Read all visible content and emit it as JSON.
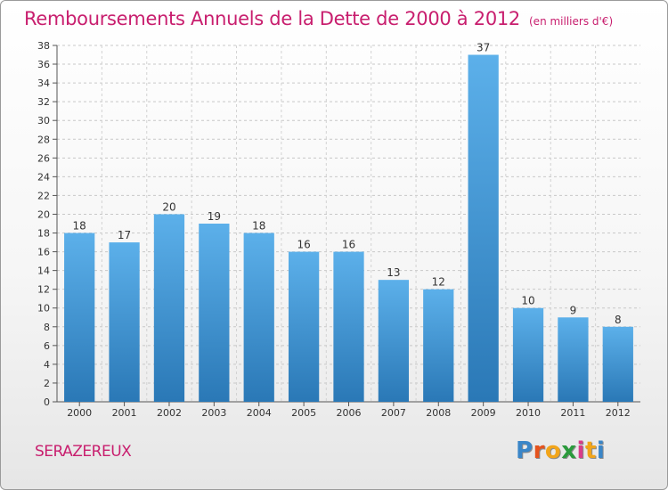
{
  "chart_data": {
    "type": "bar",
    "title": "Remboursements Annuels de la Dette de 2000 à 2012",
    "subtitle": "(en milliers d'€)",
    "categories": [
      "2000",
      "2001",
      "2002",
      "2003",
      "2004",
      "2005",
      "2006",
      "2007",
      "2008",
      "2009",
      "2010",
      "2011",
      "2012"
    ],
    "values": [
      18,
      17,
      20,
      19,
      18,
      16,
      16,
      13,
      12,
      37,
      10,
      9,
      8
    ],
    "ylim": [
      0,
      38
    ],
    "yticks": [
      0,
      2,
      4,
      6,
      8,
      10,
      12,
      14,
      16,
      18,
      20,
      22,
      24,
      26,
      28,
      30,
      32,
      34,
      36,
      38
    ],
    "grid": true,
    "bar_color": "#5aa9e6",
    "bar_color_dark": "#2a7ab8"
  },
  "footer": {
    "location": "SERAZEREUX",
    "logo_letters": [
      "P",
      "r",
      "o",
      "x",
      "i",
      "t",
      "i"
    ],
    "logo_colors": [
      "#3a86c8",
      "#e5531d",
      "#f2a51a",
      "#2b9a3c",
      "#d93c8a",
      "#f2a51a",
      "#3a86c8"
    ]
  }
}
